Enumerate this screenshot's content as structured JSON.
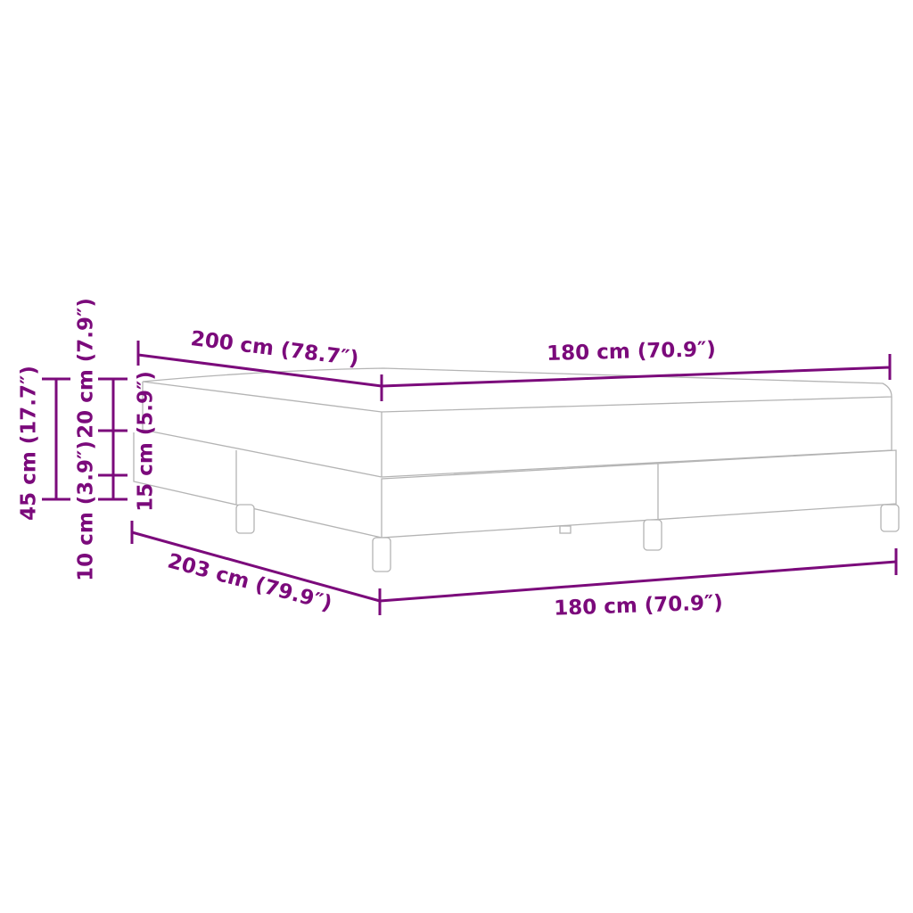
{
  "accent_color": "#7b0a7b",
  "labels": {
    "depth_top": "200 cm (78.7″)",
    "width_top": "180 cm (70.9″)",
    "depth_bottom": "203 cm (79.9″)",
    "width_bottom": "180 cm (70.9″)",
    "total_height": "45 cm (17.7″)",
    "mattress_height": "20 cm (7.9″)",
    "base_height": "15 cm (5.9″)",
    "leg_height": "10 cm (3.9″)"
  }
}
